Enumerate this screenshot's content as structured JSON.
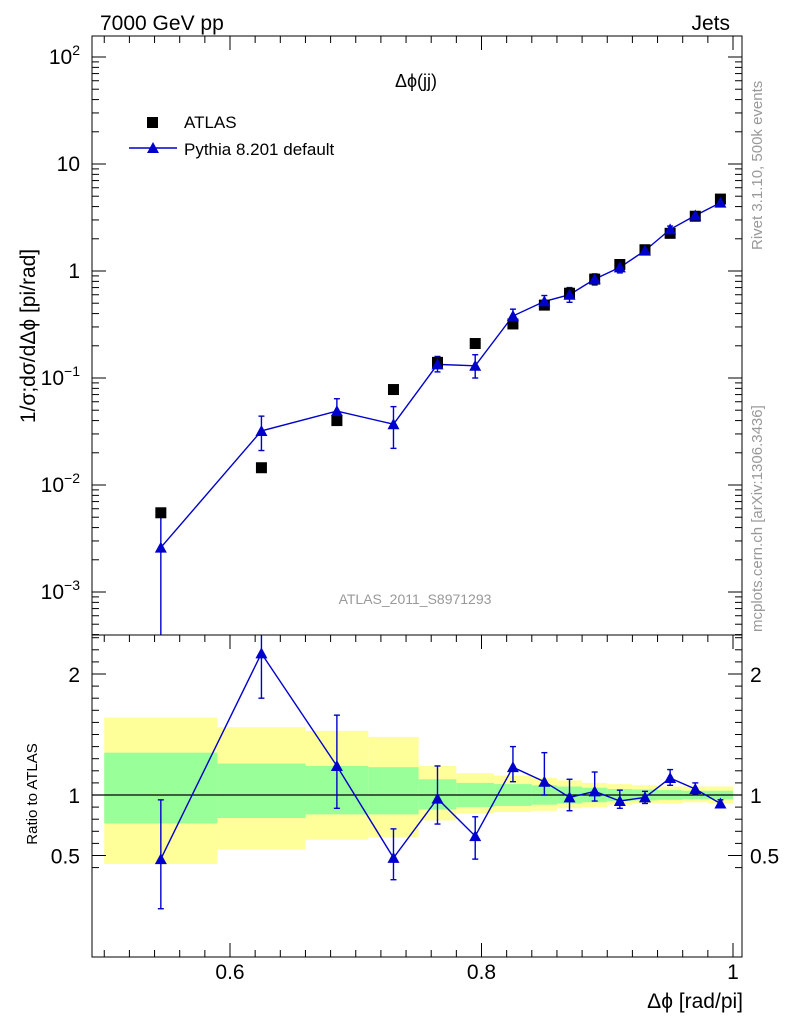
{
  "header": {
    "left": "7000 GeV pp",
    "right": "Jets"
  },
  "side": {
    "rivet": "Rivet 3.1.10,  500k events",
    "mcplots": "mcplots.cern.ch [arXiv:1306.3436]"
  },
  "colors": {
    "mc": "#0000cc",
    "data": "#000000",
    "band_inner": "#99ff99",
    "band_outer": "#ffff99"
  },
  "chart_data": [
    {
      "type": "scatter",
      "title": "Δϕ(jj)",
      "watermark": "ATLAS_2011_S8971293",
      "ylabel": "1/σ;dσ/dΔϕ [pi/rad]",
      "yscale": "log",
      "ylim": [
        0.0004,
        150
      ],
      "xlim": [
        0.5,
        1.0
      ],
      "yticks": [
        {
          "value": 0.001,
          "base": "10",
          "exp": "−3"
        },
        {
          "value": 0.01,
          "base": "10",
          "exp": "−2"
        },
        {
          "value": 0.1,
          "base": "10",
          "exp": "−1"
        },
        {
          "value": 1,
          "base": "1",
          "exp": ""
        },
        {
          "value": 10,
          "base": "10",
          "exp": ""
        },
        {
          "value": 100,
          "base": "10",
          "exp": "2"
        }
      ],
      "legend": {
        "placement": "top-left",
        "data_label": "ATLAS",
        "mc_label": "Pythia 8.201 default"
      },
      "series": [
        {
          "name": "ATLAS",
          "marker": "square",
          "x": [
            0.545,
            0.625,
            0.685,
            0.73,
            0.765,
            0.795,
            0.825,
            0.85,
            0.87,
            0.89,
            0.91,
            0.93,
            0.95,
            0.97,
            0.99
          ],
          "y": [
            0.0055,
            0.0145,
            0.04,
            0.078,
            0.14,
            0.21,
            0.32,
            0.48,
            0.62,
            0.84,
            1.15,
            1.58,
            2.25,
            3.25,
            4.7
          ]
        },
        {
          "name": "Pythia 8.201 default",
          "marker": "triangle",
          "x": [
            0.545,
            0.625,
            0.685,
            0.73,
            0.765,
            0.795,
            0.825,
            0.85,
            0.87,
            0.89,
            0.91,
            0.93,
            0.95,
            0.97,
            0.99
          ],
          "y": [
            0.0026,
            0.032,
            0.049,
            0.037,
            0.134,
            0.13,
            0.38,
            0.52,
            0.6,
            0.84,
            1.08,
            1.55,
            2.45,
            3.3,
            4.35
          ],
          "yerr_low": [
            0.00225,
            0.011,
            0.012,
            0.015,
            0.02,
            0.03,
            0.05,
            0.06,
            0.09,
            0.1,
            0.12,
            0.12,
            0.17,
            0.2,
            0.25
          ],
          "yerr_high": [
            0.0025,
            0.012,
            0.015,
            0.017,
            0.025,
            0.035,
            0.06,
            0.07,
            0.1,
            0.1,
            0.14,
            0.12,
            0.18,
            0.22,
            0.28
          ]
        }
      ]
    },
    {
      "type": "line",
      "ylabel": "Ratio to ATLAS",
      "xlabel": "Δϕ [rad/pi]",
      "xlim": [
        0.49,
        1.01
      ],
      "ylim": [
        0.34,
        2.37
      ],
      "xticks": [
        0.6,
        0.8,
        1
      ],
      "xticklabels": [
        "0.6",
        "0.8",
        "1"
      ],
      "yticks": [
        0.5,
        1,
        2
      ],
      "yticklabels": [
        "0.5",
        "1",
        "2"
      ],
      "reference_line": 1,
      "bins": [
        {
          "x0": 0.5,
          "x1": 0.59,
          "inner": [
            0.765,
            1.35
          ],
          "outer": [
            0.43,
            1.64
          ]
        },
        {
          "x0": 0.59,
          "x1": 0.66,
          "inner": [
            0.81,
            1.26
          ],
          "outer": [
            0.55,
            1.56
          ]
        },
        {
          "x0": 0.66,
          "x1": 0.71,
          "inner": [
            0.84,
            1.24
          ],
          "outer": [
            0.63,
            1.53
          ]
        },
        {
          "x0": 0.71,
          "x1": 0.75,
          "inner": [
            0.84,
            1.23
          ],
          "outer": [
            0.65,
            1.48
          ]
        },
        {
          "x0": 0.75,
          "x1": 0.78,
          "inner": [
            0.88,
            1.13
          ],
          "outer": [
            0.79,
            1.24
          ]
        },
        {
          "x0": 0.78,
          "x1": 0.81,
          "inner": [
            0.9,
            1.1
          ],
          "outer": [
            0.85,
            1.18
          ]
        },
        {
          "x0": 0.81,
          "x1": 0.84,
          "inner": [
            0.91,
            1.09
          ],
          "outer": [
            0.86,
            1.16
          ]
        },
        {
          "x0": 0.84,
          "x1": 0.86,
          "inner": [
            0.92,
            1.08
          ],
          "outer": [
            0.87,
            1.14
          ]
        },
        {
          "x0": 0.86,
          "x1": 0.88,
          "inner": [
            0.93,
            1.07
          ],
          "outer": [
            0.89,
            1.12
          ]
        },
        {
          "x0": 0.88,
          "x1": 0.9,
          "inner": [
            0.94,
            1.06
          ],
          "outer": [
            0.9,
            1.1
          ]
        },
        {
          "x0": 0.9,
          "x1": 0.92,
          "inner": [
            0.95,
            1.05
          ],
          "outer": [
            0.92,
            1.09
          ]
        },
        {
          "x0": 0.92,
          "x1": 0.94,
          "inner": [
            0.955,
            1.045
          ],
          "outer": [
            0.93,
            1.08
          ]
        },
        {
          "x0": 0.94,
          "x1": 0.96,
          "inner": [
            0.96,
            1.04
          ],
          "outer": [
            0.93,
            1.07
          ]
        },
        {
          "x0": 0.96,
          "x1": 0.98,
          "inner": [
            0.965,
            1.035
          ],
          "outer": [
            0.94,
            1.07
          ]
        },
        {
          "x0": 0.98,
          "x1": 1.0,
          "inner": [
            0.965,
            1.035
          ],
          "outer": [
            0.93,
            1.07
          ]
        }
      ],
      "series": [
        {
          "name": "Pythia 8.201 default",
          "x": [
            0.545,
            0.625,
            0.685,
            0.73,
            0.765,
            0.795,
            0.825,
            0.85,
            0.87,
            0.89,
            0.91,
            0.93,
            0.95,
            0.97,
            0.99
          ],
          "y": [
            0.47,
            2.17,
            1.24,
            0.48,
            0.97,
            0.66,
            1.23,
            1.11,
            0.98,
            1.03,
            0.95,
            0.98,
            1.14,
            1.05,
            0.93
          ],
          "yerr_low": [
            0.41,
            0.37,
            0.35,
            0.18,
            0.21,
            0.19,
            0.12,
            0.11,
            0.11,
            0.08,
            0.06,
            0.05,
            0.06,
            0.04,
            0.03
          ],
          "yerr_high": [
            0.49,
            0.41,
            0.42,
            0.24,
            0.27,
            0.16,
            0.17,
            0.24,
            0.15,
            0.16,
            0.09,
            0.05,
            0.07,
            0.05,
            0.03
          ]
        }
      ]
    }
  ]
}
